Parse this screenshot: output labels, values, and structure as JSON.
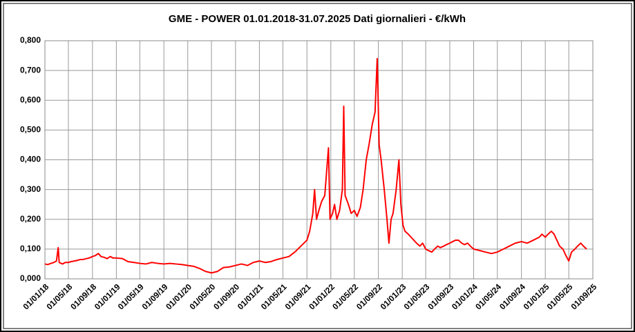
{
  "chart_data": {
    "type": "line",
    "title": "GME - POWER 01.01.2018-31.07.2025 Dati giornalieri - €/kWh",
    "color": "#ff0000",
    "grid": true,
    "xlim": [
      "01/01/18",
      "01/09/25"
    ],
    "xticks": [
      "01/01/18",
      "01/05/18",
      "01/09/18",
      "01/01/19",
      "01/05/19",
      "01/09/19",
      "01/01/20",
      "01/05/20",
      "01/09/20",
      "01/01/21",
      "01/05/21",
      "01/09/21",
      "01/01/22",
      "01/05/22",
      "01/09/22",
      "01/01/23",
      "01/05/23",
      "01/09/23",
      "01/01/24",
      "01/05/24",
      "01/09/24",
      "01/01/25",
      "01/05/25",
      "01/09/25"
    ],
    "ylim": [
      0,
      0.8
    ],
    "yticks": [
      {
        "value": 0,
        "label": "0,000"
      },
      {
        "value": 0.1,
        "label": "0,100"
      },
      {
        "value": 0.2,
        "label": "0,200"
      },
      {
        "value": 0.3,
        "label": "0,300"
      },
      {
        "value": 0.4,
        "label": "0,400"
      },
      {
        "value": 0.5,
        "label": "0,500"
      },
      {
        "value": 0.6,
        "label": "0,600"
      },
      {
        "value": 0.7,
        "label": "0,700"
      },
      {
        "value": 0.8,
        "label": "0,800"
      }
    ],
    "x": [
      "01/01/18",
      "15/01/18",
      "01/02/18",
      "15/02/18",
      "01/03/18",
      "10/03/18",
      "15/03/18",
      "01/04/18",
      "15/04/18",
      "01/05/18",
      "15/05/18",
      "01/06/18",
      "15/06/18",
      "01/07/18",
      "15/07/18",
      "01/08/18",
      "15/08/18",
      "01/09/18",
      "15/09/18",
      "01/10/18",
      "15/10/18",
      "01/11/18",
      "15/11/18",
      "01/12/18",
      "15/12/18",
      "01/01/19",
      "01/02/19",
      "01/03/19",
      "01/04/19",
      "01/05/19",
      "01/06/19",
      "01/07/19",
      "01/08/19",
      "01/09/19",
      "01/10/19",
      "01/11/19",
      "01/12/19",
      "01/01/20",
      "01/02/20",
      "01/03/20",
      "01/04/20",
      "01/05/20",
      "01/06/20",
      "01/07/20",
      "01/08/20",
      "01/09/20",
      "01/10/20",
      "01/11/20",
      "01/12/20",
      "01/01/21",
      "01/02/21",
      "01/03/21",
      "01/04/21",
      "01/05/21",
      "01/06/21",
      "01/07/21",
      "01/08/21",
      "01/09/21",
      "15/09/21",
      "01/10/21",
      "10/10/21",
      "20/10/21",
      "01/11/21",
      "15/11/21",
      "01/12/21",
      "20/12/21",
      "28/12/21",
      "10/01/22",
      "20/01/22",
      "01/02/22",
      "15/02/22",
      "01/03/22",
      "08/03/22",
      "15/03/22",
      "01/04/22",
      "15/04/22",
      "01/05/22",
      "15/05/22",
      "01/06/22",
      "15/06/22",
      "01/07/22",
      "15/07/22",
      "01/08/22",
      "15/08/22",
      "26/08/22",
      "05/09/22",
      "15/09/22",
      "01/10/22",
      "15/10/22",
      "25/10/22",
      "05/11/22",
      "15/11/22",
      "01/12/22",
      "15/12/22",
      "25/12/22",
      "05/01/23",
      "15/01/23",
      "01/02/23",
      "15/02/23",
      "01/03/23",
      "15/03/23",
      "01/04/23",
      "15/04/23",
      "01/05/23",
      "15/05/23",
      "01/06/23",
      "15/06/23",
      "01/07/23",
      "15/07/23",
      "01/08/23",
      "15/08/23",
      "01/09/23",
      "15/09/23",
      "01/10/23",
      "15/10/23",
      "01/11/23",
      "15/11/23",
      "01/12/23",
      "15/12/23",
      "01/01/24",
      "01/02/24",
      "01/03/24",
      "01/04/24",
      "01/05/24",
      "01/06/24",
      "01/07/24",
      "01/08/24",
      "01/09/24",
      "01/10/24",
      "01/11/24",
      "01/12/24",
      "15/12/24",
      "01/01/25",
      "15/01/25",
      "01/02/25",
      "15/02/25",
      "01/03/25",
      "15/03/25",
      "01/04/25",
      "15/04/25",
      "01/05/25",
      "15/05/25",
      "01/06/25",
      "15/06/25",
      "01/07/25",
      "15/07/25",
      "31/07/25"
    ],
    "values": [
      0.05,
      0.048,
      0.052,
      0.055,
      0.06,
      0.105,
      0.055,
      0.05,
      0.055,
      0.055,
      0.058,
      0.06,
      0.062,
      0.065,
      0.065,
      0.068,
      0.07,
      0.075,
      0.078,
      0.085,
      0.075,
      0.072,
      0.068,
      0.075,
      0.07,
      0.07,
      0.068,
      0.058,
      0.055,
      0.052,
      0.05,
      0.055,
      0.052,
      0.05,
      0.052,
      0.05,
      0.048,
      0.045,
      0.042,
      0.035,
      0.025,
      0.02,
      0.025,
      0.038,
      0.04,
      0.045,
      0.05,
      0.045,
      0.055,
      0.06,
      0.055,
      0.058,
      0.065,
      0.07,
      0.075,
      0.09,
      0.11,
      0.13,
      0.16,
      0.22,
      0.3,
      0.2,
      0.23,
      0.26,
      0.28,
      0.44,
      0.2,
      0.22,
      0.25,
      0.2,
      0.23,
      0.3,
      0.58,
      0.28,
      0.25,
      0.22,
      0.23,
      0.21,
      0.24,
      0.3,
      0.4,
      0.45,
      0.52,
      0.56,
      0.74,
      0.45,
      0.4,
      0.3,
      0.2,
      0.12,
      0.2,
      0.22,
      0.3,
      0.4,
      0.25,
      0.18,
      0.16,
      0.15,
      0.14,
      0.13,
      0.12,
      0.11,
      0.12,
      0.1,
      0.095,
      0.09,
      0.1,
      0.11,
      0.105,
      0.11,
      0.115,
      0.12,
      0.125,
      0.13,
      0.13,
      0.12,
      0.115,
      0.12,
      0.11,
      0.1,
      0.095,
      0.09,
      0.085,
      0.09,
      0.1,
      0.11,
      0.12,
      0.125,
      0.12,
      0.13,
      0.14,
      0.15,
      0.14,
      0.15,
      0.16,
      0.15,
      0.13,
      0.11,
      0.1,
      0.08,
      0.06,
      0.09,
      0.1,
      0.11,
      0.12,
      0.11,
      0.1
    ]
  }
}
